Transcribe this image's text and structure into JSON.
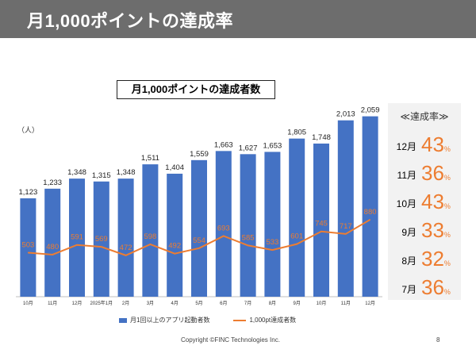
{
  "header": {
    "title": "月1,000ポイントの達成率"
  },
  "chart_data": {
    "type": "bar",
    "title": "月1,000ポイントの達成者数",
    "ylabel": "（人）",
    "categories": [
      "10月",
      "11月",
      "12月",
      "2025年1月",
      "2月",
      "3月",
      "4月",
      "5月",
      "6月",
      "7月",
      "8月",
      "9月",
      "10月",
      "11月",
      "12月"
    ],
    "series": [
      {
        "name": "月1回以上のアプリ起動者数",
        "type": "bar",
        "color": "#4472c4",
        "values": [
          1123,
          1233,
          1348,
          1315,
          1348,
          1511,
          1404,
          1559,
          1663,
          1627,
          1653,
          1805,
          1748,
          2013,
          2059
        ],
        "labels": [
          "1,123",
          "1,233",
          "1,348",
          "1,315",
          "1,348",
          "1,511",
          "1,404",
          "1,559",
          "1,663",
          "1,627",
          "1,653",
          "1,805",
          "1,748",
          "2,013",
          "2,059"
        ]
      },
      {
        "name": "1,000pt達成者数",
        "type": "line",
        "color": "#ed7d31",
        "values": [
          503,
          480,
          591,
          569,
          472,
          598,
          492,
          554,
          693,
          585,
          533,
          601,
          745,
          717,
          880
        ],
        "labels": [
          "503",
          "480",
          "591",
          "569",
          "472",
          "598",
          "492",
          "554",
          "693",
          "585",
          "533",
          "601",
          "745",
          "717",
          "880"
        ]
      }
    ],
    "ylim": [
      0,
      2300
    ]
  },
  "rates": {
    "title": "≪達成率≫",
    "unit": "%",
    "items": [
      {
        "month": "12月",
        "value": "43"
      },
      {
        "month": "11月",
        "value": "36"
      },
      {
        "month": "10月",
        "value": "43"
      },
      {
        "month": "9月",
        "value": "33"
      },
      {
        "month": "8月",
        "value": "32"
      },
      {
        "month": "7月",
        "value": "36"
      }
    ]
  },
  "legend": {
    "bar": "月1回以上のアプリ起動者数",
    "line": "1,000pt達成者数"
  },
  "footer": {
    "copyright": "Copyright ©FINC Technologies Inc.",
    "page": "8"
  }
}
